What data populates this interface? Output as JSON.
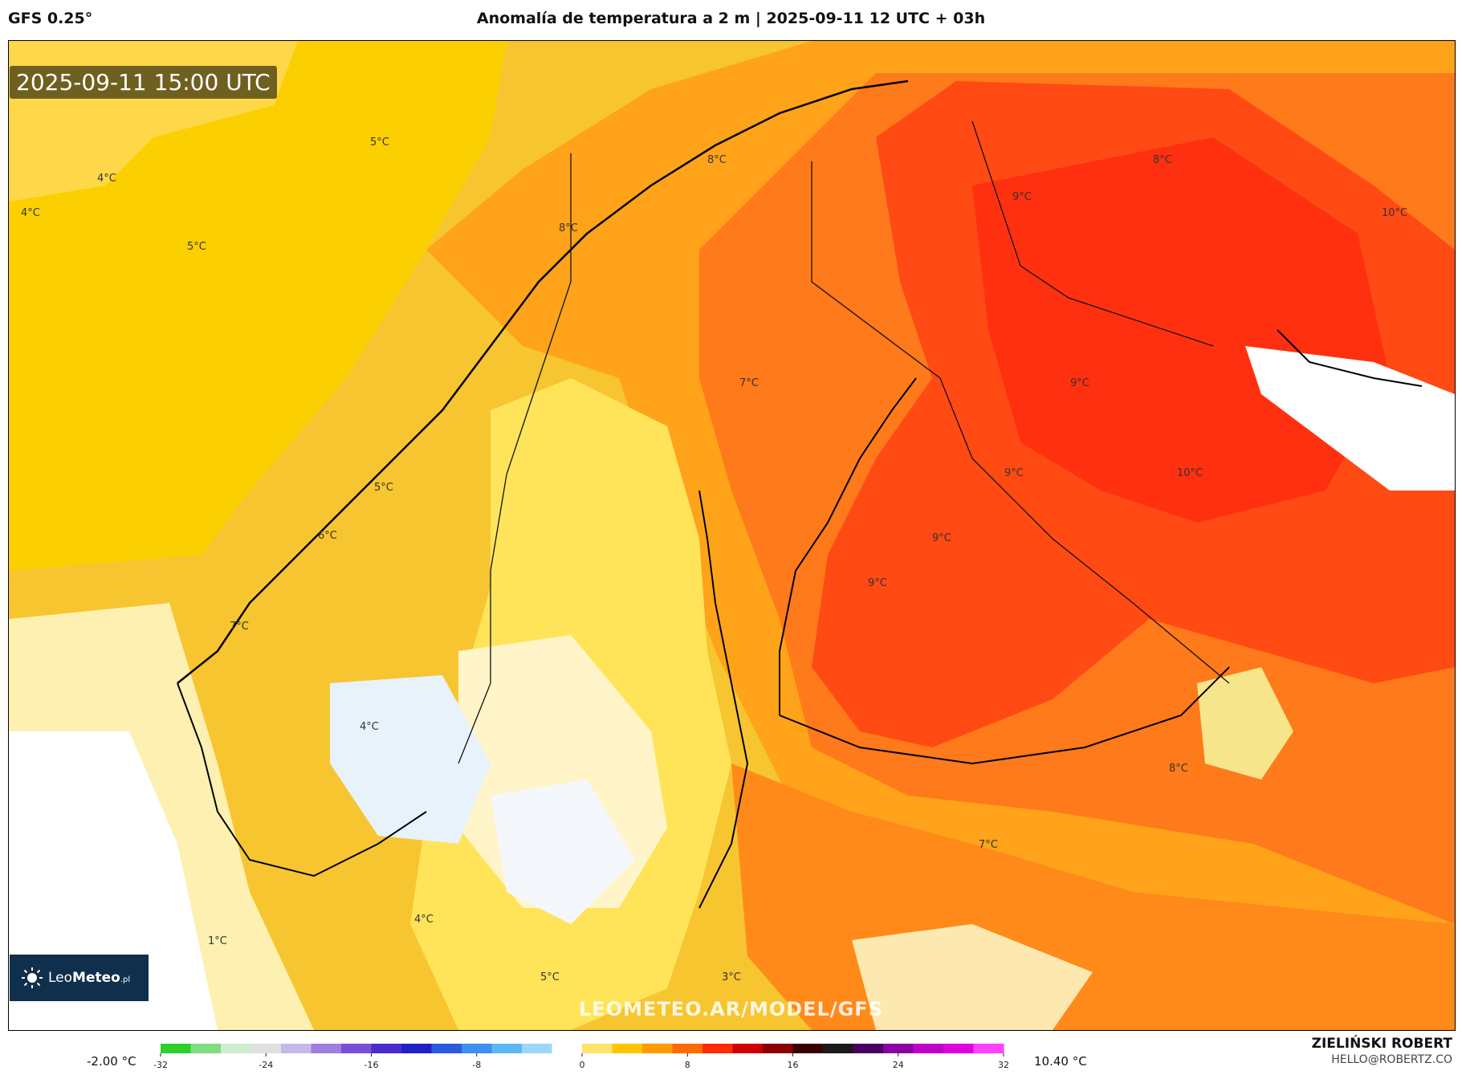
{
  "header": {
    "model": "GFS 0.25°",
    "title": "Anomalía de temperatura a 2 m | 2025-09-11 12 UTC + 03h"
  },
  "map": {
    "timestamp": "2025-09-11 15:00 UTC",
    "watermark": "LEOMETEO.AR/MODEL/GFS",
    "labels": [
      {
        "text": "5°C"
      },
      {
        "text": "4°C"
      },
      {
        "text": "4°C"
      },
      {
        "text": "5°C"
      },
      {
        "text": "8°C"
      },
      {
        "text": "8°C"
      },
      {
        "text": "9°C"
      },
      {
        "text": "8°C"
      },
      {
        "text": "10°C"
      },
      {
        "text": "7°C"
      },
      {
        "text": "9°C"
      },
      {
        "text": "9°C"
      },
      {
        "text": "10°C"
      },
      {
        "text": "5°C"
      },
      {
        "text": "6°C"
      },
      {
        "text": "9°C"
      },
      {
        "text": "9°C"
      },
      {
        "text": "7°C"
      },
      {
        "text": "4°C"
      },
      {
        "text": "8°C"
      },
      {
        "text": "7°C"
      },
      {
        "text": "4°C"
      },
      {
        "text": "1°C"
      },
      {
        "text": "5°C"
      },
      {
        "text": "3°C"
      }
    ]
  },
  "logo": {
    "brand": "Leo",
    "brand_bold": "Meteo",
    "suffix": ".pl"
  },
  "colorbar": {
    "min_label": "-2.00 °C",
    "max_label": "10.40 °C",
    "ticks": [
      "-32",
      "-24",
      "-16",
      "-8",
      "0",
      "8",
      "16",
      "24",
      "32"
    ],
    "colors": [
      "#2bd02b",
      "#7fdc7f",
      "#cfeccf",
      "#e0e0e0",
      "#c6b8e8",
      "#9c7fe0",
      "#7a4fd8",
      "#4a2bd0",
      "#2020c8",
      "#2a5be0",
      "#3d8ff0",
      "#5cb8f5",
      "#9ad8f8",
      "#ffffff",
      "#ffe36a",
      "#ffc400",
      "#ff9a00",
      "#ff6a00",
      "#ff2a00",
      "#d00000",
      "#8a0000",
      "#3a0000",
      "#1a1a1a",
      "#4a0060",
      "#8a00a0",
      "#c000c8",
      "#e000e0",
      "#ff40ff"
    ]
  },
  "author": {
    "name": "ZIELIŃSKI ROBERT",
    "email": "HELLO@ROBERTZ.CO"
  }
}
